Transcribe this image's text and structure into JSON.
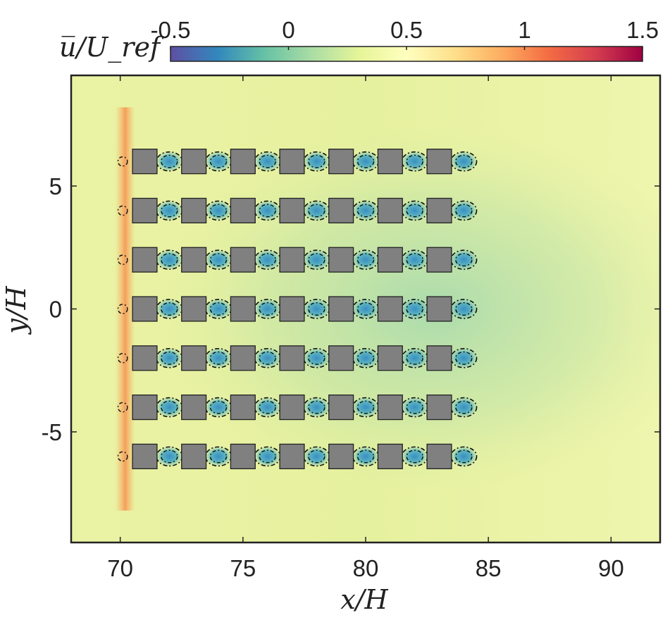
{
  "chart_data": {
    "type": "heatmap",
    "title": "",
    "xlabel": "x/H",
    "ylabel": "y/H",
    "xlim": [
      68,
      92
    ],
    "ylim": [
      -9.5,
      9.5
    ],
    "grid": false,
    "xticks": [
      70,
      75,
      80,
      85,
      90
    ],
    "yticks": [
      -5,
      0,
      5
    ],
    "xtick_labels": [
      "70",
      "75",
      "80",
      "85",
      "90"
    ],
    "ytick_labels": [
      "-5",
      "0",
      "5"
    ],
    "colorbar": {
      "label": "u̅/U_ref",
      "placement": "top",
      "range": [
        -0.5,
        1.5
      ],
      "ticks": [
        -0.5,
        0,
        0.5,
        1,
        1.5
      ],
      "tick_labels": [
        "-0.5",
        "0",
        "0.5",
        "1",
        "1.5"
      ],
      "colormap": [
        "#5e4fa2",
        "#3288bd",
        "#66c2a5",
        "#abdda4",
        "#e6f598",
        "#ffffbf",
        "#fee08b",
        "#fdae61",
        "#f46d43",
        "#d53e4f",
        "#9e0142"
      ]
    },
    "background_value": 0.45,
    "obstacle_array": {
      "columns_x": [
        71,
        73,
        75,
        77,
        79,
        81,
        83
      ],
      "rows_y": [
        6,
        4,
        2,
        0,
        -2,
        -4,
        -6
      ],
      "size": 1,
      "color": "#808080"
    },
    "upstream_speedup_x": 70.2,
    "wake_region": {
      "x_end": 91,
      "value": 0.3
    },
    "recirculation_zone_contours": "black dash-dot"
  }
}
